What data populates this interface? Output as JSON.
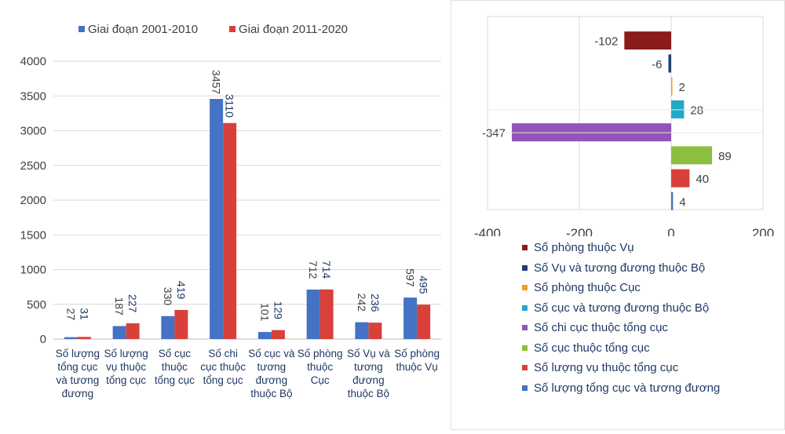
{
  "chart_data": [
    {
      "type": "bar",
      "series": [
        {
          "name": "Giai đoạn 2001-2010",
          "color": "#4472c4",
          "values": [
            27,
            187,
            330,
            3457,
            101,
            712,
            242,
            597
          ],
          "labels": [
            "27",
            "187",
            "330",
            "3457",
            "101",
            "712",
            "242",
            "597"
          ]
        },
        {
          "name": "Giai đoạn 2011-2020",
          "color": "#d9403a",
          "values": [
            31,
            227,
            419,
            3110,
            129,
            714,
            236,
            495
          ],
          "labels": [
            "31",
            "227",
            "419",
            "3110",
            "129",
            "714",
            "236",
            "495"
          ]
        }
      ],
      "categories": [
        [
          "Số lượng",
          "tổng cục",
          "và tương",
          "đương"
        ],
        [
          "Số lượng",
          "vụ thuộc",
          "tổng cục"
        ],
        [
          "Số cục",
          "thuộc",
          "tổng cục"
        ],
        [
          "Số chi",
          "cục thuộc",
          "tổng cục"
        ],
        [
          "Số cục và",
          "tương",
          "đương",
          "thuộc Bộ"
        ],
        [
          "Số phòng",
          "thuộc",
          "Cục"
        ],
        [
          "Số Vụ và",
          "tương",
          "đương",
          "thuộc Bộ"
        ],
        [
          "Số phòng",
          "thuộc Vụ"
        ]
      ],
      "ylim": [
        0,
        4000
      ],
      "yticks": [
        "0",
        "500",
        "1000",
        "1500",
        "2000",
        "2500",
        "3000",
        "3500",
        "4000"
      ],
      "grid": true,
      "legend": "top"
    },
    {
      "type": "bar",
      "orientation": "horizontal",
      "bars": [
        {
          "name": "Số phòng thuộc Vụ",
          "value": -102,
          "label": "-102",
          "color": "#8b1a1a"
        },
        {
          "name": "Số Vụ và tương đương thuộc Bộ",
          "value": -6,
          "label": "-6",
          "color": "#1f3f77"
        },
        {
          "name": "Số phòng thuộc Cục",
          "value": 2,
          "label": "2",
          "color": "#f39a2b"
        },
        {
          "name": "Số cục và tương đương thuộc Bộ",
          "value": 28,
          "label": "28",
          "color": "#21a9c7"
        },
        {
          "name": "Số chi cục thuộc tổng cục",
          "value": -347,
          "label": "-347",
          "color": "#9155b8"
        },
        {
          "name": "Số cục thuộc tổng cục",
          "value": 89,
          "label": "89",
          "color": "#8cbf3f"
        },
        {
          "name": "Số lượng vụ thuộc tổng cục",
          "value": 40,
          "label": "40",
          "color": "#d9403a"
        },
        {
          "name": "Số lượng tổng cục và tương đương",
          "value": 4,
          "label": "4",
          "color": "#4472c4"
        }
      ],
      "xlim": [
        -400,
        200
      ],
      "xticks": [
        "-400",
        "-200",
        "0",
        "200"
      ],
      "grid": true,
      "legend": "bottom"
    }
  ]
}
